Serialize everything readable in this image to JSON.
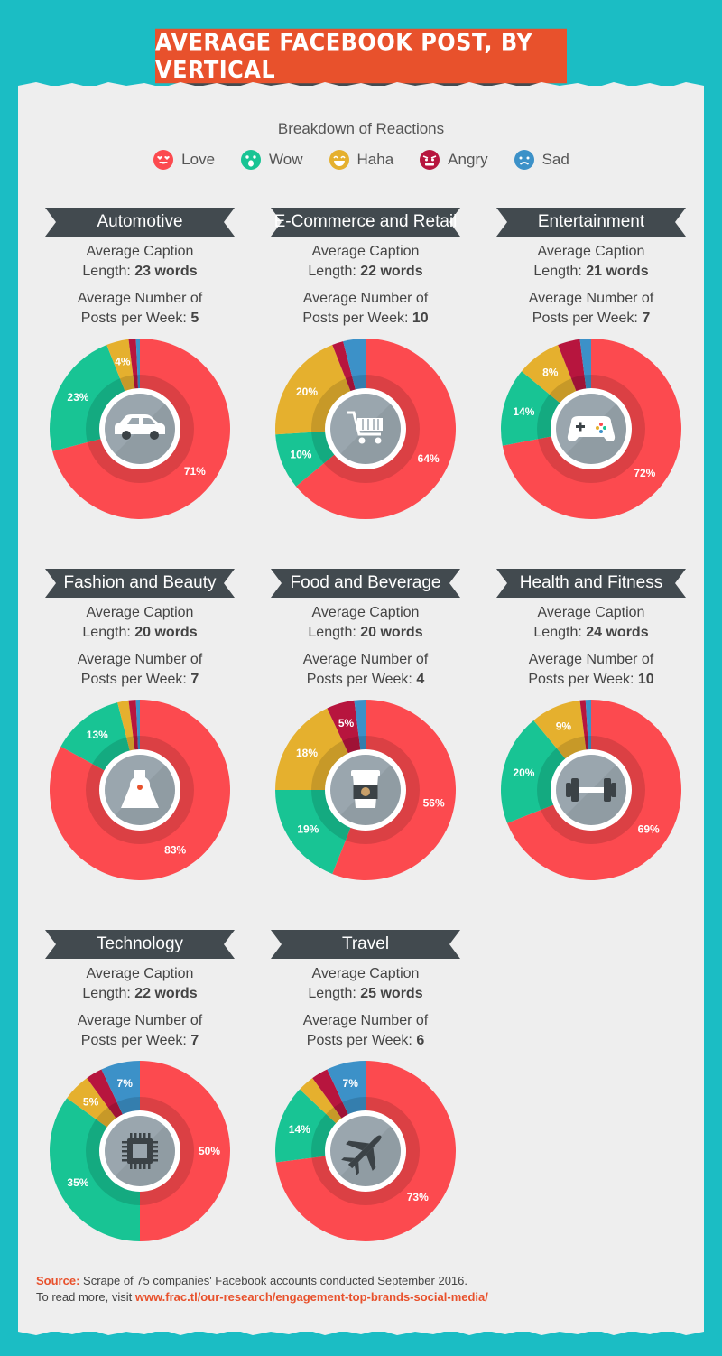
{
  "title": "AVERAGE FACEBOOK POST, BY VERTICAL",
  "legend": {
    "title": "Breakdown of Reactions",
    "items": [
      {
        "label": "Love",
        "color": "#fc4a4f",
        "icon": "love-face-icon"
      },
      {
        "label": "Wow",
        "color": "#18c494",
        "icon": "wow-face-icon"
      },
      {
        "label": "Haha",
        "color": "#e5b02e",
        "icon": "haha-face-icon"
      },
      {
        "label": "Angry",
        "color": "#b7153e",
        "icon": "angry-face-icon"
      },
      {
        "label": "Sad",
        "color": "#3c91c8",
        "icon": "sad-face-icon"
      }
    ]
  },
  "stat_labels": {
    "caption_prefix_1": "Average Caption",
    "caption_prefix_2": "Length: ",
    "posts_prefix_1": "Average Number of",
    "posts_prefix_2": "Posts per Week: "
  },
  "verticals": [
    {
      "name": "Automotive",
      "caption_length": "23 words",
      "posts_per_week": "5",
      "icon": "car-icon"
    },
    {
      "name": "E-Commerce and Retail",
      "caption_length": "22 words",
      "posts_per_week": "10",
      "icon": "shopping-cart-icon"
    },
    {
      "name": "Entertainment",
      "caption_length": "21 words",
      "posts_per_week": "7",
      "icon": "game-controller-icon"
    },
    {
      "name": "Fashion and Beauty",
      "caption_length": "20 words",
      "posts_per_week": "7",
      "icon": "dress-icon"
    },
    {
      "name": "Food and Beverage",
      "caption_length": "20 words",
      "posts_per_week": "4",
      "icon": "coffee-cup-icon"
    },
    {
      "name": "Health and Fitness",
      "caption_length": "24 words",
      "posts_per_week": "10",
      "icon": "dumbbell-icon"
    },
    {
      "name": "Technology",
      "caption_length": "22 words",
      "posts_per_week": "7",
      "icon": "microchip-icon"
    },
    {
      "name": "Travel",
      "caption_length": "25 words",
      "posts_per_week": "6",
      "icon": "airplane-icon"
    }
  ],
  "chart_data": [
    {
      "type": "pie",
      "title": "Automotive",
      "categories": [
        "Love",
        "Wow",
        "Haha",
        "Angry",
        "Sad"
      ],
      "values": [
        71,
        23,
        4,
        1.3,
        0.7
      ],
      "labels": [
        "71%",
        "23%",
        "4%",
        "",
        ""
      ]
    },
    {
      "type": "pie",
      "title": "E-Commerce and Retail",
      "categories": [
        "Love",
        "Wow",
        "Haha",
        "Angry",
        "Sad"
      ],
      "values": [
        64,
        10,
        20,
        2,
        4
      ],
      "labels": [
        "64%",
        "10%",
        "20%",
        "",
        ""
      ]
    },
    {
      "type": "pie",
      "title": "Entertainment",
      "categories": [
        "Love",
        "Wow",
        "Haha",
        "Angry",
        "Sad"
      ],
      "values": [
        72,
        14,
        8,
        4,
        2
      ],
      "labels": [
        "72%",
        "14%",
        "8%",
        "",
        ""
      ]
    },
    {
      "type": "pie",
      "title": "Fashion and Beauty",
      "categories": [
        "Love",
        "Wow",
        "Haha",
        "Angry",
        "Sad"
      ],
      "values": [
        83,
        13,
        2,
        1.3,
        0.7
      ],
      "labels": [
        "83%",
        "13%",
        "",
        "",
        ""
      ]
    },
    {
      "type": "pie",
      "title": "Food and Beverage",
      "categories": [
        "Love",
        "Wow",
        "Haha",
        "Angry",
        "Sad"
      ],
      "values": [
        56,
        19,
        18,
        5,
        2
      ],
      "labels": [
        "56%",
        "19%",
        "18%",
        "5%",
        ""
      ]
    },
    {
      "type": "pie",
      "title": "Health and Fitness",
      "categories": [
        "Love",
        "Wow",
        "Haha",
        "Angry",
        "Sad"
      ],
      "values": [
        69,
        20,
        9,
        1,
        1
      ],
      "labels": [
        "69%",
        "20%",
        "9%",
        "",
        ""
      ]
    },
    {
      "type": "pie",
      "title": "Technology",
      "categories": [
        "Love",
        "Wow",
        "Haha",
        "Angry",
        "Sad"
      ],
      "values": [
        50,
        35,
        5,
        3,
        7
      ],
      "labels": [
        "50%",
        "35%",
        "5%",
        "",
        "7%"
      ]
    },
    {
      "type": "pie",
      "title": "Travel",
      "categories": [
        "Love",
        "Wow",
        "Haha",
        "Angry",
        "Sad"
      ],
      "values": [
        73,
        14,
        3,
        3,
        7
      ],
      "labels": [
        "73%",
        "14%",
        "",
        "",
        "7%"
      ]
    }
  ],
  "source": {
    "label": "Source:",
    "text": " Scrape of 75 companies' Facebook accounts conducted September 2016.",
    "more_prefix": "To read more, visit ",
    "url": "www.frac.tl/our-research/engagement-top-brands-social-media/"
  }
}
